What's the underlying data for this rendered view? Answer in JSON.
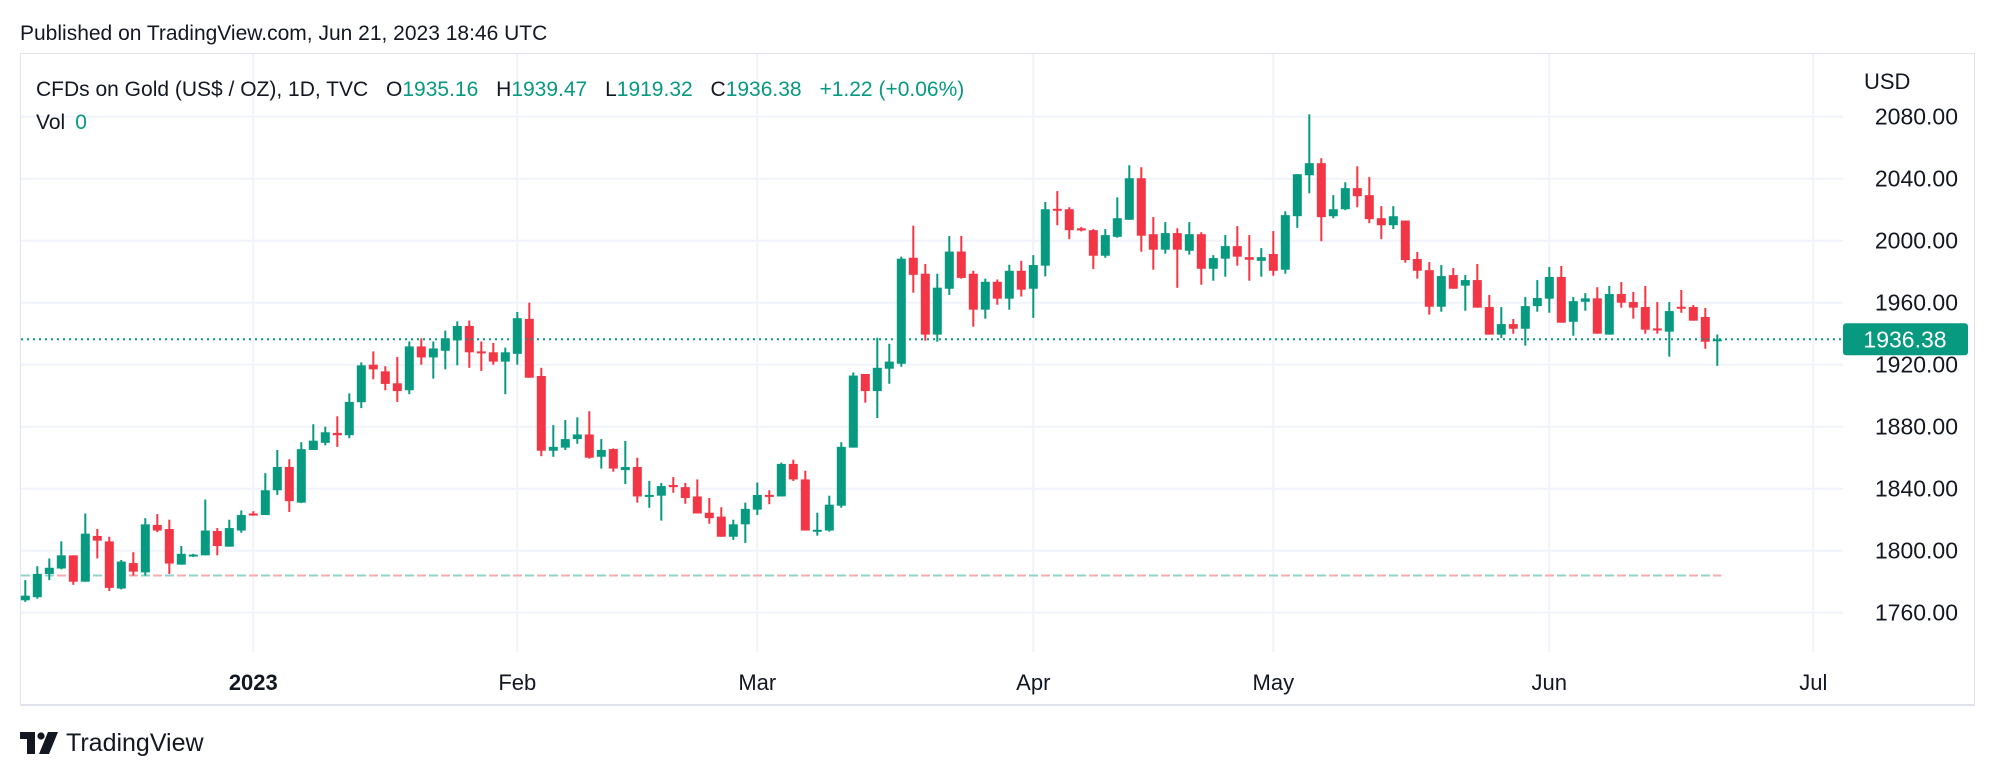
{
  "header": {
    "published": "Published on TradingView.com, Jun 21, 2023 18:46 UTC"
  },
  "legend": {
    "symbol": "CFDs on Gold (US$ / OZ), 1D, TVC",
    "o_label": "O",
    "o_value": "1935.16",
    "h_label": "H",
    "h_value": "1939.47",
    "l_label": "L",
    "l_value": "1919.32",
    "c_label": "C",
    "c_value": "1936.38",
    "change": "+1.22 (+0.06%)",
    "vol_label": "Vol",
    "vol_value": "0"
  },
  "price_axis": {
    "currency": "USD",
    "current_price_label": "1936.38"
  },
  "footer": {
    "brand": "TradingView"
  },
  "colors": {
    "up": "#089981",
    "down": "#F23645",
    "grid": "#f0f3fa",
    "text": "#131722"
  },
  "chart_data": {
    "type": "candlestick",
    "title": "CFDs on Gold (US$ / OZ), 1D, TVC",
    "ylabel": "USD",
    "ylim": [
      1728,
      2095
    ],
    "y_ticks": [
      "1760.00",
      "1800.00",
      "1840.00",
      "1880.00",
      "1920.00",
      "1960.00",
      "2000.00",
      "2040.00",
      "2080.00"
    ],
    "x_ticks": [
      {
        "label": "2023",
        "index": 20,
        "bold": true
      },
      {
        "label": "Feb",
        "index": 42
      },
      {
        "label": "Mar",
        "index": 62
      },
      {
        "label": "Apr",
        "index": 85
      },
      {
        "label": "May",
        "index": 105
      },
      {
        "label": "Jun",
        "index": 128
      },
      {
        "label": "Jul",
        "index": 150
      }
    ],
    "x_range": [
      1,
      150
    ],
    "current_price": 1936.38,
    "reference_line": 1784,
    "ohlc_fields": [
      "open",
      "high",
      "low",
      "close"
    ],
    "candles": [
      [
        1768,
        1781,
        1767,
        1771
      ],
      [
        1770,
        1790,
        1769,
        1785
      ],
      [
        1785,
        1795,
        1781,
        1789
      ],
      [
        1788.5,
        1806,
        1788,
        1797
      ],
      [
        1797,
        1797,
        1778,
        1780
      ],
      [
        1780,
        1824,
        1780,
        1811
      ],
      [
        1809.5,
        1814,
        1795,
        1806.5
      ],
      [
        1806,
        1809,
        1774,
        1776
      ],
      [
        1775.6,
        1794,
        1775,
        1793
      ],
      [
        1792,
        1799,
        1784,
        1786.5
      ],
      [
        1786,
        1821,
        1784,
        1817
      ],
      [
        1816.6,
        1823.6,
        1812,
        1813
      ],
      [
        1814,
        1820,
        1785,
        1791.7
      ],
      [
        1791,
        1803,
        1791,
        1798
      ],
      [
        1796.6,
        1798,
        1796,
        1797.5
      ],
      [
        1797,
        1833,
        1797,
        1813
      ],
      [
        1812.7,
        1814.6,
        1797,
        1803
      ],
      [
        1802.6,
        1820,
        1802.6,
        1814.6
      ],
      [
        1813,
        1826,
        1811.6,
        1823
      ],
      [
        1824,
        1825.5,
        1822.5,
        1823
      ],
      [
        1823,
        1850,
        1823,
        1839
      ],
      [
        1839,
        1865,
        1836,
        1854
      ],
      [
        1854,
        1859,
        1825,
        1832
      ],
      [
        1831,
        1870,
        1830.7,
        1865.5
      ],
      [
        1865,
        1881.6,
        1865,
        1871
      ],
      [
        1869.6,
        1880,
        1868,
        1876.4
      ],
      [
        1876,
        1886.7,
        1867,
        1874.5
      ],
      [
        1874.5,
        1901.5,
        1872.6,
        1896
      ],
      [
        1895.8,
        1921.5,
        1892,
        1919.6
      ],
      [
        1920,
        1928.6,
        1910.6,
        1917
      ],
      [
        1915.7,
        1919,
        1903.5,
        1907.6
      ],
      [
        1908,
        1925,
        1896,
        1903
      ],
      [
        1903.5,
        1935,
        1901,
        1931.8
      ],
      [
        1931.8,
        1937,
        1920,
        1924.7
      ],
      [
        1924.7,
        1935,
        1911,
        1930.5
      ],
      [
        1929,
        1942,
        1917,
        1937
      ],
      [
        1935.7,
        1948,
        1919.6,
        1945
      ],
      [
        1945,
        1948.5,
        1918,
        1928
      ],
      [
        1928.6,
        1935,
        1916,
        1927.3
      ],
      [
        1928,
        1934,
        1920,
        1922
      ],
      [
        1922,
        1931,
        1901,
        1928
      ],
      [
        1927,
        1954,
        1920,
        1950
      ],
      [
        1949.5,
        1960,
        1911.6,
        1911.6
      ],
      [
        1912.7,
        1918,
        1861,
        1864.5
      ],
      [
        1864.5,
        1881,
        1860.6,
        1867
      ],
      [
        1866.5,
        1884.3,
        1865,
        1872
      ],
      [
        1872,
        1886,
        1869,
        1875
      ],
      [
        1875,
        1890,
        1859.4,
        1860
      ],
      [
        1860.6,
        1872,
        1853,
        1865
      ],
      [
        1865.6,
        1866,
        1851,
        1853
      ],
      [
        1852,
        1870.8,
        1843,
        1854
      ],
      [
        1854,
        1860,
        1831,
        1835
      ],
      [
        1835.5,
        1845,
        1827.7,
        1836
      ],
      [
        1835.5,
        1843.7,
        1819.4,
        1841.7
      ],
      [
        1842.4,
        1847.5,
        1837.4,
        1841
      ],
      [
        1841,
        1843.7,
        1830.3,
        1834
      ],
      [
        1835,
        1846,
        1824,
        1824
      ],
      [
        1824.5,
        1834,
        1817.4,
        1821
      ],
      [
        1822,
        1828,
        1809,
        1809
      ],
      [
        1809,
        1820,
        1807,
        1817
      ],
      [
        1817,
        1831,
        1805,
        1827
      ],
      [
        1826.5,
        1844,
        1823,
        1836
      ],
      [
        1836,
        1839,
        1830,
        1835.5
      ],
      [
        1835,
        1856.8,
        1835,
        1856
      ],
      [
        1856,
        1858.7,
        1845,
        1846
      ],
      [
        1846,
        1851.6,
        1813,
        1813
      ],
      [
        1813,
        1824.5,
        1809.7,
        1813.5
      ],
      [
        1813,
        1835.5,
        1812.3,
        1829.7
      ],
      [
        1829,
        1870,
        1827.7,
        1867
      ],
      [
        1866.5,
        1915,
        1866.5,
        1913
      ],
      [
        1914,
        1914,
        1895.5,
        1903
      ],
      [
        1903,
        1937.4,
        1885.6,
        1918
      ],
      [
        1917.4,
        1933.5,
        1907.7,
        1922
      ],
      [
        1920.6,
        1989.7,
        1918.7,
        1988.4
      ],
      [
        1989,
        2009.7,
        1966.5,
        1978
      ],
      [
        1978.7,
        1985,
        1935.5,
        1939.4
      ],
      [
        1939.4,
        1978.7,
        1934.8,
        1969.7
      ],
      [
        1969,
        2003,
        1965,
        1993
      ],
      [
        1993,
        2003,
        1975.5,
        1976
      ],
      [
        1978.7,
        1980.6,
        1944.5,
        1955.5
      ],
      [
        1955.5,
        1975.5,
        1949.7,
        1973.5
      ],
      [
        1973.5,
        1975,
        1958.7,
        1962.6
      ],
      [
        1962.6,
        1984.5,
        1955.5,
        1980.6
      ],
      [
        1980.6,
        1987,
        1964,
        1968.4
      ],
      [
        1969,
        1990.7,
        1950.2,
        1984.3
      ],
      [
        1983.9,
        2025,
        1977,
        2020.3
      ],
      [
        2020.6,
        2032,
        2010,
        2019.7
      ],
      [
        2020.3,
        2021.6,
        2001,
        2006.8
      ],
      [
        2008,
        2008.8,
        2006,
        2006.6
      ],
      [
        2006.8,
        2007.5,
        1981.7,
        1990.3
      ],
      [
        1990.3,
        2007.5,
        1989,
        2003.6
      ],
      [
        2002.5,
        2028,
        2001.9,
        2014.5
      ],
      [
        2013.5,
        2048.7,
        2013.5,
        2040.3
      ],
      [
        2040.3,
        2047.4,
        1992.9,
        2003.2
      ],
      [
        2004.2,
        2015.2,
        1981.3,
        1994.2
      ],
      [
        1994.2,
        2012,
        1991.6,
        2004.9
      ],
      [
        2004.9,
        2008,
        1969.6,
        1994.2
      ],
      [
        1993.5,
        2012,
        1991,
        2004.2
      ],
      [
        2004.2,
        2005.5,
        1971.6,
        1981.9
      ],
      [
        1981.9,
        1990.7,
        1974.2,
        1988.8
      ],
      [
        1988.4,
        2003.6,
        1976.8,
        1996.5
      ],
      [
        1996.5,
        2009.4,
        1983.9,
        1989.7
      ],
      [
        1989.4,
        2003.6,
        1974.2,
        1987.7
      ],
      [
        1987,
        1995.2,
        1976.8,
        1989.4
      ],
      [
        1991.4,
        2006.2,
        1977.4,
        1980.6
      ],
      [
        1981.3,
        2019,
        1978.7,
        2016.5
      ],
      [
        2015.8,
        2042.9,
        2008.3,
        2042.9
      ],
      [
        2042.2,
        2081.5,
        2030.6,
        2050
      ],
      [
        2050,
        2053.2,
        1999.7,
        2015.2
      ],
      [
        2015.8,
        2029.4,
        2014.5,
        2020.3
      ],
      [
        2020.3,
        2037.7,
        2019.7,
        2033.9
      ],
      [
        2033.9,
        2048,
        2021.6,
        2028.7
      ],
      [
        2029.4,
        2041,
        2011.3,
        2013.9
      ],
      [
        2014.5,
        2022.3,
        2001,
        2010
      ],
      [
        2010,
        2022.3,
        2007.5,
        2015.8
      ],
      [
        2013,
        2013,
        1985.8,
        1987.5
      ],
      [
        1988.2,
        1992.7,
        1975.5,
        1980.6
      ],
      [
        1981,
        1986.2,
        1952.3,
        1957.4
      ],
      [
        1957.4,
        1984.3,
        1954.2,
        1977.2
      ],
      [
        1977.8,
        1982.4,
        1969,
        1969
      ],
      [
        1971,
        1977.8,
        1954.8,
        1974.6
      ],
      [
        1974.6,
        1985,
        1956.8,
        1956.8
      ],
      [
        1957.2,
        1965,
        1939.4,
        1939.4
      ],
      [
        1939.4,
        1957.2,
        1937.2,
        1946.2
      ],
      [
        1946.2,
        1949.5,
        1940,
        1943.2
      ],
      [
        1943.2,
        1963.7,
        1932.3,
        1957.8
      ],
      [
        1957.8,
        1974.6,
        1954.2,
        1963
      ],
      [
        1962.6,
        1983,
        1953.5,
        1976.6
      ],
      [
        1976.6,
        1983.7,
        1947.1,
        1947.1
      ],
      [
        1947.7,
        1963.7,
        1938.7,
        1961
      ],
      [
        1960.6,
        1966.2,
        1954.8,
        1962.8
      ],
      [
        1962.8,
        1970,
        1940,
        1940
      ],
      [
        1939.4,
        1970.8,
        1939.4,
        1965.6
      ],
      [
        1965.6,
        1973.3,
        1956.8,
        1960
      ],
      [
        1960.4,
        1966.9,
        1949.7,
        1956.8
      ],
      [
        1957.2,
        1970.8,
        1940,
        1942.6
      ],
      [
        1943.4,
        1960.4,
        1940,
        1942.6
      ],
      [
        1941.3,
        1960.4,
        1925.2,
        1954.6
      ],
      [
        1957.4,
        1968.2,
        1953.5,
        1956.6
      ],
      [
        1957.2,
        1958.5,
        1948.4,
        1948.4
      ],
      [
        1950.8,
        1956.6,
        1930.3,
        1934.8
      ],
      [
        1935.16,
        1939.47,
        1919.32,
        1936.38
      ]
    ]
  }
}
